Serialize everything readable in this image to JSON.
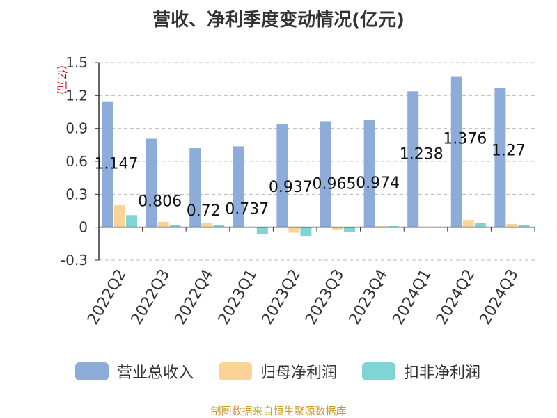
{
  "chart_data": {
    "type": "bar",
    "title": "营收、净利季度变动情况(亿元)",
    "ylabel": "(亿元)",
    "ylim": [
      -0.3,
      1.5
    ],
    "yticks": [
      "-0.3",
      "0",
      "0.3",
      "0.6",
      "0.9",
      "1.2",
      "1.5"
    ],
    "grid": true,
    "legend_position": "bottom",
    "categories": [
      "2022Q2",
      "2022Q3",
      "2022Q4",
      "2023Q1",
      "2023Q2",
      "2023Q3",
      "2023Q4",
      "2024Q1",
      "2024Q2",
      "2024Q3"
    ],
    "series": [
      {
        "name": "营业总收入",
        "color": "#8eacd9",
        "values": [
          1.147,
          0.806,
          0.72,
          0.737,
          0.937,
          0.965,
          0.974,
          1.238,
          1.376,
          1.27
        ],
        "labels": [
          "1.147",
          "0.806",
          "0.72",
          "0.737",
          "0.937",
          "0.965",
          "0.974",
          "1.238",
          "1.376",
          "1.27"
        ]
      },
      {
        "name": "归母净利润",
        "color": "#fcd396",
        "values": [
          0.2,
          0.05,
          0.04,
          0.005,
          -0.05,
          -0.02,
          0.01,
          0.005,
          0.06,
          0.03
        ]
      },
      {
        "name": "扣非净利润",
        "color": "#7fd4d4",
        "values": [
          0.11,
          0.02,
          0.02,
          -0.06,
          -0.08,
          -0.04,
          0.01,
          0.005,
          0.04,
          0.02
        ]
      }
    ]
  },
  "source": "制图数据来自恒生聚源数据库"
}
